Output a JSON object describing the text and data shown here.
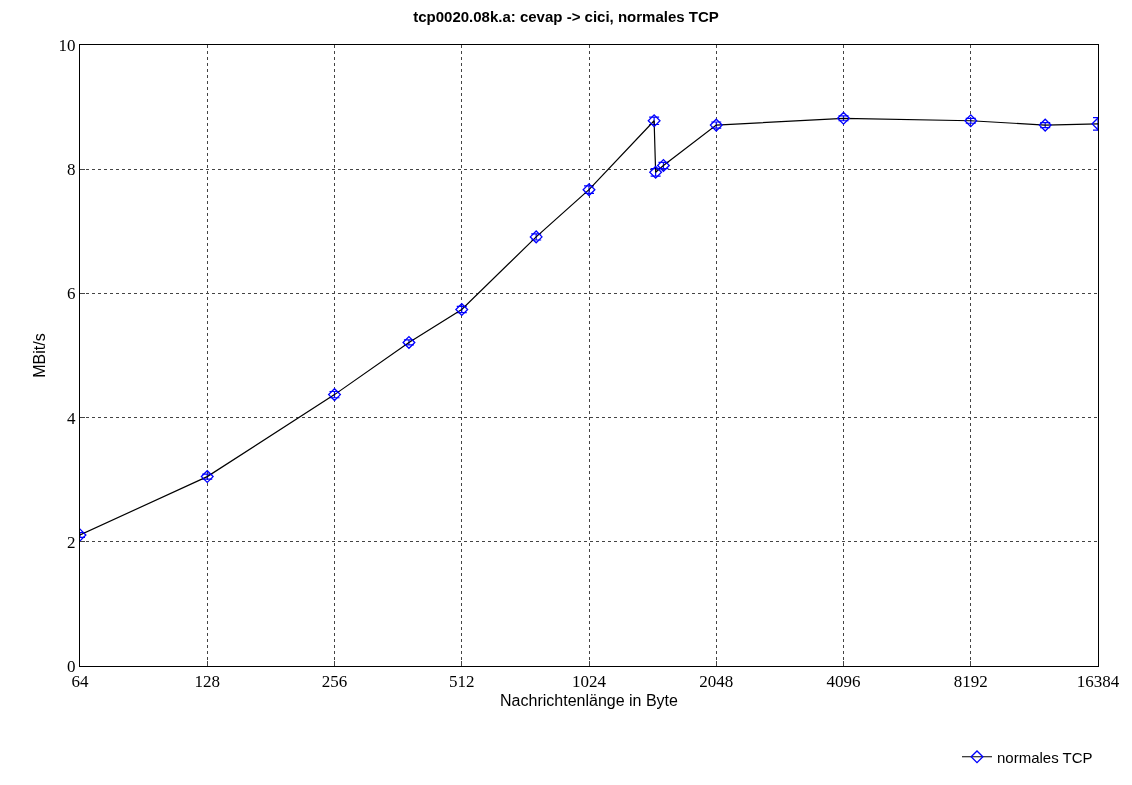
{
  "chart_data": {
    "type": "line",
    "title": "tcp0020.08k.a: cevap -> cici, normales TCP",
    "xlabel": "Nachrichtenlänge in Byte",
    "ylabel": "MBit/s",
    "x": [
      64,
      128,
      256,
      384,
      512,
      768,
      1024,
      1460,
      1472,
      1536,
      2048,
      4096,
      8192,
      12288,
      16384
    ],
    "series": [
      {
        "name": "normales TCP",
        "color": "#000000",
        "colors": [
          "#0000ff",
          "#0000ff",
          "#0000ff",
          "#0000ff",
          "#0000ff",
          "#0000ff",
          "#0000ff",
          "#0000ff",
          "#0000ff",
          "#0000ff",
          "#0000ff",
          "#0000ff",
          "#0000ff",
          "#0000ff",
          "#0000ff"
        ],
        "values": [
          2.11,
          3.05,
          4.37,
          5.21,
          5.74,
          6.91,
          7.67,
          8.78,
          7.95,
          8.06,
          8.71,
          8.82,
          8.78,
          8.71,
          8.73
        ],
        "errors": [
          0.04,
          0.04,
          0.05,
          0.04,
          0.05,
          0.05,
          0.06,
          0.06,
          0.06,
          0.05,
          0.05,
          0.04,
          0.04,
          0.04,
          0.1
        ]
      }
    ],
    "log": "x",
    "xlim": [
      64,
      16384
    ],
    "xticks": [
      64,
      128,
      256,
      512,
      1024,
      2048,
      4096,
      8192,
      16384
    ],
    "ylim": [
      0,
      10
    ],
    "yticks": [
      0,
      2,
      4,
      6,
      8,
      10
    ],
    "grid": true,
    "legend": "bottom right",
    "marker": "diamond",
    "line_style": "solid"
  }
}
